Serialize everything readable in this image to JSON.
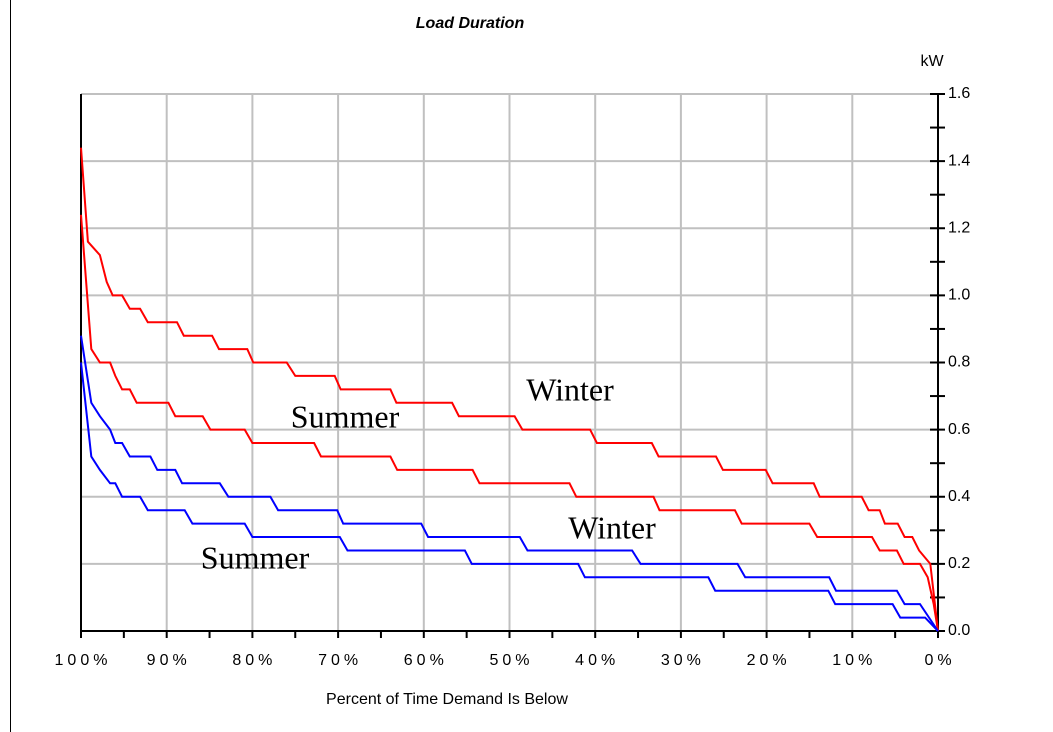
{
  "chart_data": {
    "type": "line",
    "title": "Load Duration",
    "y_label": "kW",
    "x_label": "Percent of Time Demand Is Below",
    "xlim": [
      100,
      0
    ],
    "ylim": [
      0,
      1.6
    ],
    "grid": true,
    "xticks": [
      {
        "value": 100,
        "label": "100%"
      },
      {
        "value": 90,
        "label": "90%"
      },
      {
        "value": 80,
        "label": "80%"
      },
      {
        "value": 70,
        "label": "70%"
      },
      {
        "value": 60,
        "label": "60%"
      },
      {
        "value": 50,
        "label": "50%"
      },
      {
        "value": 40,
        "label": "40%"
      },
      {
        "value": 30,
        "label": "30%"
      },
      {
        "value": 20,
        "label": "20%"
      },
      {
        "value": 10,
        "label": "10%"
      },
      {
        "value": 0,
        "label": "0%"
      }
    ],
    "yticks": [
      {
        "value": 0,
        "label": "0.0"
      },
      0.2,
      0.4,
      0.6,
      0.8,
      {
        "value": 1,
        "label": "1.0"
      },
      1.2,
      1.4,
      1.6
    ],
    "series": [
      {
        "name": "Winter",
        "color": "#ff0000",
        "x": [
          100,
          99.2,
          97.8,
          97,
          96.3,
          95.2,
          94.3,
          93.1,
          92.2,
          88.8,
          88,
          84.7,
          83.9,
          80.6,
          79.9,
          76,
          75,
          70.4,
          69.7,
          63.9,
          63.2,
          56.7,
          55.9,
          49.4,
          48.5,
          40.6,
          39.8,
          33.4,
          32.6,
          25.9,
          25.1,
          20.1,
          19.3,
          14.5,
          13.8,
          8.9,
          8.1,
          6.8,
          6.2,
          4.7,
          3.9,
          3,
          2.2,
          0.9,
          0
        ],
        "values": [
          1.44,
          1.16,
          1.12,
          1.04,
          1,
          1,
          0.96,
          0.96,
          0.92,
          0.92,
          0.88,
          0.88,
          0.84,
          0.84,
          0.8,
          0.8,
          0.76,
          0.76,
          0.72,
          0.72,
          0.68,
          0.68,
          0.64,
          0.64,
          0.6,
          0.6,
          0.56,
          0.56,
          0.52,
          0.52,
          0.48,
          0.48,
          0.44,
          0.44,
          0.4,
          0.4,
          0.36,
          0.36,
          0.32,
          0.32,
          0.28,
          0.28,
          0.24,
          0.2,
          0
        ]
      },
      {
        "name": "Summer",
        "color": "#ff0000",
        "x": [
          100,
          98.8,
          97.8,
          96.6,
          96,
          95.2,
          94.3,
          93.5,
          89.8,
          89,
          85.8,
          84.9,
          80.9,
          80,
          72.8,
          72,
          63.9,
          63.1,
          54.3,
          53.5,
          43,
          42.2,
          33.2,
          32.5,
          23.7,
          22.9,
          15,
          14.1,
          7.7,
          6.8,
          4.8,
          4,
          2.1,
          1.2,
          0.5,
          0
        ],
        "values": [
          1.24,
          0.84,
          0.8,
          0.8,
          0.76,
          0.72,
          0.72,
          0.68,
          0.68,
          0.64,
          0.64,
          0.6,
          0.6,
          0.56,
          0.56,
          0.52,
          0.52,
          0.48,
          0.48,
          0.44,
          0.44,
          0.4,
          0.4,
          0.36,
          0.36,
          0.32,
          0.32,
          0.28,
          0.28,
          0.24,
          0.24,
          0.2,
          0.2,
          0.16,
          0.08,
          0
        ]
      },
      {
        "name": "Winter",
        "color": "#0000ff",
        "x": [
          100,
          98.8,
          97.8,
          96.6,
          96,
          95.2,
          94.3,
          91.9,
          91.1,
          89,
          88.2,
          83.8,
          82.8,
          77.9,
          77,
          70.1,
          69.4,
          60.3,
          59.5,
          48.8,
          47.9,
          35.7,
          34.7,
          23.4,
          22.5,
          12.7,
          11.9,
          4.8,
          3.9,
          2.1,
          0
        ],
        "values": [
          0.88,
          0.68,
          0.64,
          0.6,
          0.56,
          0.56,
          0.52,
          0.52,
          0.48,
          0.48,
          0.44,
          0.44,
          0.4,
          0.4,
          0.36,
          0.36,
          0.32,
          0.32,
          0.28,
          0.28,
          0.24,
          0.24,
          0.2,
          0.2,
          0.16,
          0.16,
          0.12,
          0.12,
          0.08,
          0.08,
          0
        ]
      },
      {
        "name": "Summer",
        "color": "#0000ff",
        "x": [
          100,
          98.8,
          97.8,
          96.6,
          96,
          95.2,
          93.1,
          92.2,
          87.9,
          87,
          80.9,
          80,
          69.8,
          68.9,
          55.2,
          54.4,
          42,
          41.2,
          26.8,
          26,
          12.8,
          12,
          5.3,
          4.4,
          1.5,
          0
        ],
        "values": [
          0.8,
          0.52,
          0.48,
          0.44,
          0.44,
          0.4,
          0.4,
          0.36,
          0.36,
          0.32,
          0.32,
          0.28,
          0.28,
          0.24,
          0.24,
          0.2,
          0.2,
          0.16,
          0.16,
          0.12,
          0.12,
          0.08,
          0.08,
          0.04,
          0.04,
          0
        ]
      }
    ]
  }
}
